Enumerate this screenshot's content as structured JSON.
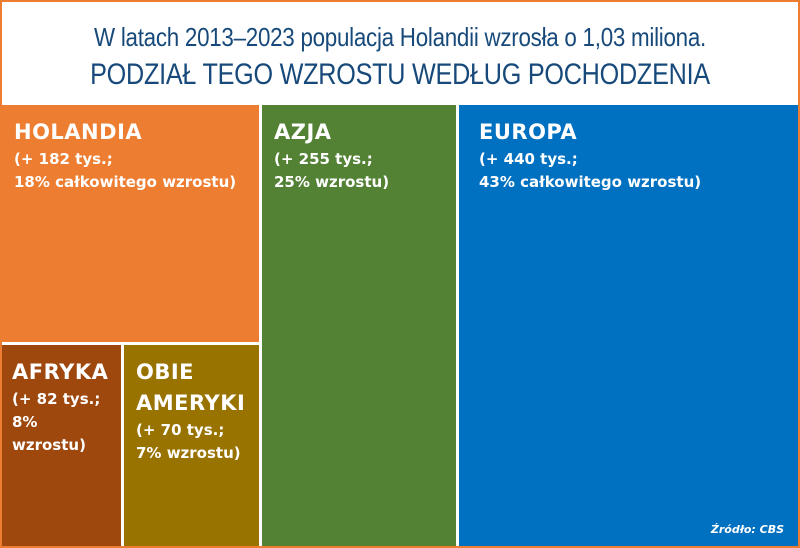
{
  "chart_data": {
    "type": "treemap",
    "title": "W latach 2013–2023 populacja Holandii wzrosła o 1,03 miliona.",
    "subtitle": "PODZIAŁ TEGO WZROSTU WEDŁUG POCHODZENIA",
    "unit": "tys.",
    "items": [
      {
        "name": "HOLANDIA",
        "value": 182,
        "share_pct": 18,
        "desc1": "(+ 182 tys.;",
        "desc2": "18% całkowitego wzrostu)",
        "color": "#ED7D31"
      },
      {
        "name": "AZJA",
        "value": 255,
        "share_pct": 25,
        "desc1": "(+ 255 tys.;",
        "desc2": "25% wzrostu)",
        "color": "#548235"
      },
      {
        "name": "EUROPA",
        "value": 440,
        "share_pct": 43,
        "desc1": "(+ 440 tys.;",
        "desc2": "43% całkowitego wzrostu)",
        "color": "#0070C0"
      },
      {
        "name": "AFRYKA",
        "value": 82,
        "share_pct": 8,
        "desc1": "(+ 82 tys.;",
        "desc2": "8% wzrostu)",
        "color": "#9E480E"
      },
      {
        "name": "OBIE AMERYKI",
        "name_line1": "OBIE",
        "name_line2": "AMERYKI",
        "value": 70,
        "share_pct": 7,
        "desc1": "(+ 70 tys.;",
        "desc2": "7% wzrostu)",
        "color": "#997300"
      }
    ],
    "source": "Źródło: CBS"
  }
}
